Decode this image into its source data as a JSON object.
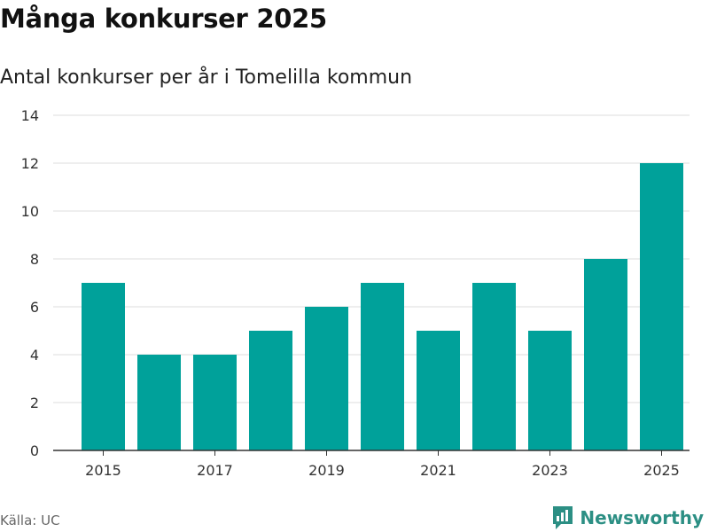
{
  "title": "Många konkurser 2025",
  "subtitle": "Antal konkurser per år i Tomelilla kommun",
  "source": "Källa: UC",
  "brand": {
    "name": "Newsworthy",
    "icon": "newsworthy-logo-icon"
  },
  "colors": {
    "bar": "#00a19a",
    "grid": "#dddddd",
    "axis": "#333333",
    "brand": "#2c8f84"
  },
  "chart_data": {
    "type": "bar",
    "x": [
      2015,
      2016,
      2017,
      2018,
      2019,
      2020,
      2021,
      2022,
      2023,
      2024,
      2025
    ],
    "values": [
      7,
      4,
      4,
      5,
      6,
      7,
      5,
      7,
      5,
      8,
      12
    ],
    "x_tick_labels": [
      "2015",
      "2017",
      "2019",
      "2021",
      "2023",
      "2025"
    ],
    "y_tick_labels": [
      "0",
      "2",
      "4",
      "6",
      "8",
      "10",
      "12",
      "14"
    ],
    "ylim": [
      0,
      14
    ],
    "xlabel": "",
    "ylabel": "",
    "grid": true,
    "legend": false
  }
}
